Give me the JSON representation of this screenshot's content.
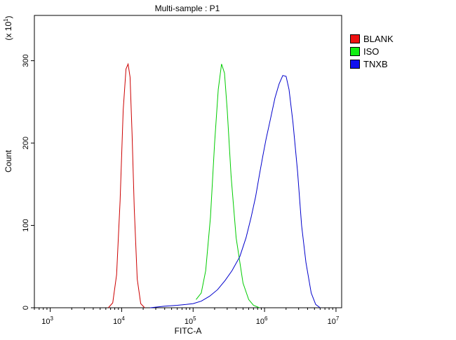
{
  "chart_data": {
    "type": "line",
    "title": "Multi-sample : P1",
    "xlabel": "FITC-A",
    "ylabel": "Count",
    "y_multiplier_label": "(x 10",
    "y_multiplier_exp": "1",
    "x_scale": "log",
    "xlim": [
      600,
      12000000
    ],
    "ylim": [
      0,
      355
    ],
    "x_ticks": [
      {
        "base": "10",
        "exp": "3",
        "value": 1000
      },
      {
        "base": "10",
        "exp": "4",
        "value": 10000
      },
      {
        "base": "10",
        "exp": "5",
        "value": 100000
      },
      {
        "base": "10",
        "exp": "6",
        "value": 1000000
      },
      {
        "base": "10",
        "exp": "7",
        "value": 10000000
      }
    ],
    "y_ticks": [
      0,
      100,
      200,
      300
    ],
    "legend_position": "top-right",
    "series": [
      {
        "name": "BLANK",
        "color": "#cc0000",
        "x": [
          6500,
          7500,
          8500,
          9500,
          10500,
          11500,
          12300,
          13100,
          14000,
          15000,
          16500,
          18500,
          21000
        ],
        "y": [
          0,
          6,
          40,
          130,
          240,
          290,
          296,
          280,
          210,
          120,
          35,
          5,
          0
        ]
      },
      {
        "name": "ISO",
        "color": "#00cc00",
        "x": [
          110000,
          130000,
          150000,
          175000,
          200000,
          225000,
          250000,
          275000,
          300000,
          340000,
          400000,
          500000,
          600000,
          700000,
          850000
        ],
        "y": [
          10,
          18,
          45,
          110,
          200,
          265,
          296,
          285,
          240,
          160,
          85,
          30,
          10,
          3,
          0
        ]
      },
      {
        "name": "TNXB",
        "color": "#0000cc",
        "x": [
          25000,
          40000,
          60000,
          80000,
          100000,
          130000,
          170000,
          220000,
          280000,
          350000,
          450000,
          550000,
          650000,
          750000,
          850000,
          950000,
          1050000,
          1200000,
          1400000,
          1600000,
          1800000,
          2000000,
          2200000,
          2500000,
          2900000,
          3300000,
          3800000,
          4500000,
          5200000,
          6000000
        ],
        "y": [
          0,
          2,
          3,
          4,
          5,
          8,
          14,
          22,
          33,
          45,
          62,
          85,
          110,
          135,
          162,
          185,
          205,
          228,
          255,
          272,
          282,
          281,
          265,
          225,
          165,
          100,
          55,
          18,
          4,
          0
        ]
      }
    ]
  }
}
